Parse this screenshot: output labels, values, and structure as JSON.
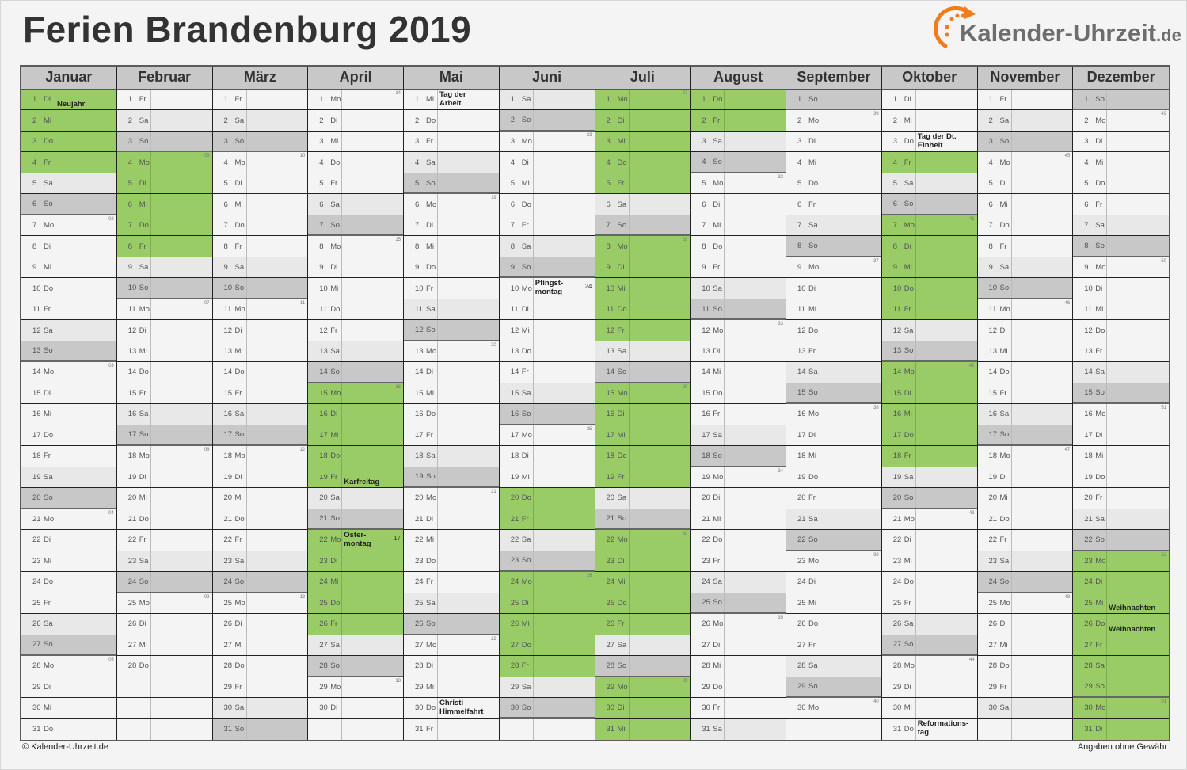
{
  "title": "Ferien Brandenburg 2019",
  "logo": {
    "text": "Kalender-Uhrzeit",
    "tld": ".de",
    "icon": "clock-arrow-icon",
    "accent": "#f07d1a"
  },
  "footer": {
    "copyright": "© Kalender-Uhrzeit.de",
    "disclaimer": "Angaben ohne Gewähr"
  },
  "colors": {
    "vacation": "#99cc66",
    "saturday": "#e8e8e8",
    "sunday": "#c8c8c8",
    "weekday": "#f4f4f4",
    "header": "#c8c8c8"
  },
  "weekday_names": [
    "So",
    "Mo",
    "Di",
    "Mi",
    "Do",
    "Fr",
    "Sa"
  ],
  "months": [
    {
      "name": "Januar",
      "days": 31,
      "first_weekday": 2,
      "vacation": [
        1,
        2,
        3,
        4
      ],
      "holidays": {
        "1": "Neujahr"
      },
      "kw": {
        "7": "02",
        "14": "03",
        "21": "04",
        "28": "05"
      }
    },
    {
      "name": "Februar",
      "days": 28,
      "first_weekday": 5,
      "vacation": [
        4,
        5,
        6,
        7,
        8
      ],
      "holidays": {},
      "kw": {
        "4": "06",
        "11": "07",
        "18": "08",
        "25": "09"
      }
    },
    {
      "name": "März",
      "days": 31,
      "first_weekday": 5,
      "vacation": [],
      "holidays": {},
      "kw": {
        "4": "10",
        "11": "11",
        "18": "12",
        "25": "13"
      }
    },
    {
      "name": "April",
      "days": 30,
      "first_weekday": 1,
      "vacation": [
        15,
        16,
        17,
        18,
        19,
        22,
        23,
        24,
        25,
        26
      ],
      "holidays": {
        "19": "Karfreitag",
        "22": "Oster-\nmontag"
      },
      "kw": {
        "1": "14",
        "8": "15",
        "15": "16",
        "22": "17",
        "29": "18"
      }
    },
    {
      "name": "Mai",
      "days": 31,
      "first_weekday": 3,
      "vacation": [],
      "holidays": {
        "1": "Tag der\nArbeit",
        "30": "Christi\nHimmelfahrt"
      },
      "kw": {
        "6": "19",
        "13": "20",
        "20": "21",
        "27": "22"
      }
    },
    {
      "name": "Juni",
      "days": 30,
      "first_weekday": 6,
      "vacation": [
        20,
        21,
        24,
        25,
        26,
        27,
        28
      ],
      "holidays": {
        "10": "Pfingst-\nmontag"
      },
      "kw": {
        "3": "23",
        "10": "24",
        "17": "25",
        "24": "26"
      }
    },
    {
      "name": "Juli",
      "days": 31,
      "first_weekday": 1,
      "vacation": [
        1,
        2,
        3,
        4,
        5,
        8,
        9,
        10,
        11,
        12,
        15,
        16,
        17,
        18,
        19,
        22,
        23,
        24,
        25,
        26,
        29,
        30,
        31
      ],
      "holidays": {},
      "kw": {
        "1": "27",
        "8": "28",
        "15": "29",
        "22": "30",
        "29": "31"
      }
    },
    {
      "name": "August",
      "days": 31,
      "first_weekday": 4,
      "vacation": [
        1,
        2
      ],
      "holidays": {},
      "kw": {
        "5": "32",
        "12": "33",
        "19": "34",
        "26": "35"
      }
    },
    {
      "name": "September",
      "days": 30,
      "first_weekday": 0,
      "vacation": [],
      "holidays": {},
      "kw": {
        "2": "36",
        "9": "37",
        "16": "38",
        "23": "39",
        "30": "40"
      }
    },
    {
      "name": "Oktober",
      "days": 31,
      "first_weekday": 2,
      "vacation": [
        4,
        7,
        8,
        9,
        10,
        11,
        14,
        15,
        16,
        17,
        18
      ],
      "holidays": {
        "3": "Tag der Dt.\nEinheit",
        "31": "Reformations-\ntag"
      },
      "kw": {
        "7": "41",
        "14": "42",
        "21": "43",
        "28": "44"
      }
    },
    {
      "name": "November",
      "days": 30,
      "first_weekday": 5,
      "vacation": [],
      "holidays": {},
      "kw": {
        "4": "45",
        "11": "46",
        "18": "47",
        "25": "48"
      }
    },
    {
      "name": "Dezember",
      "days": 31,
      "first_weekday": 0,
      "vacation": [
        23,
        24,
        25,
        26,
        27,
        28,
        29,
        30,
        31
      ],
      "holidays": {
        "25": "Weihnachten",
        "26": "Weihnachten"
      },
      "kw": {
        "2": "49",
        "9": "50",
        "16": "51",
        "23": "52",
        "30": "01"
      }
    }
  ]
}
